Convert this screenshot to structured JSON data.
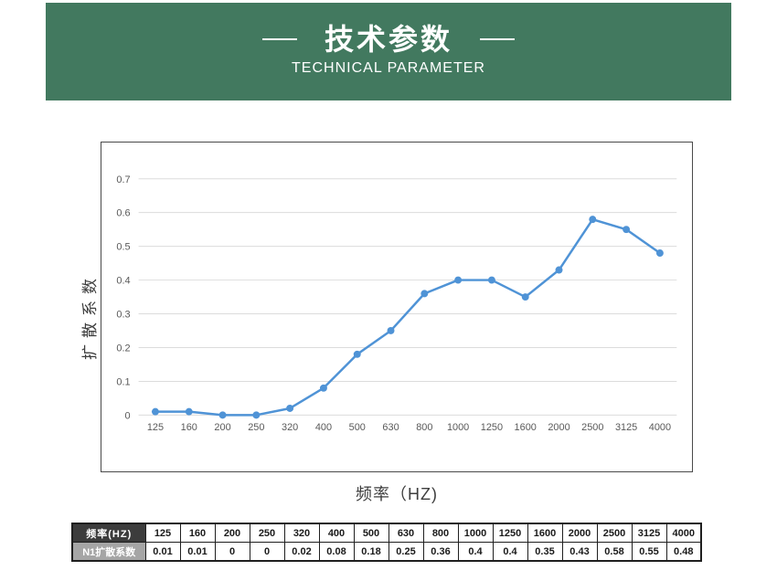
{
  "header": {
    "title": "技术参数",
    "subtitle": "TECHNICAL PARAMETER",
    "background_color": "#42795f"
  },
  "chart_data": {
    "type": "line",
    "title": "",
    "xlabel": "频率（HZ)",
    "ylabel": "扩散系数",
    "categories": [
      "125",
      "160",
      "200",
      "250",
      "320",
      "400",
      "500",
      "630",
      "800",
      "1000",
      "1250",
      "1600",
      "2000",
      "2500",
      "3125",
      "4000"
    ],
    "series": [
      {
        "name": "N1扩散系数",
        "values": [
          0.01,
          0.01,
          0,
          0,
          0.02,
          0.08,
          0.18,
          0.25,
          0.36,
          0.4,
          0.4,
          0.35,
          0.43,
          0.58,
          0.55,
          0.48
        ]
      }
    ],
    "y_ticks": [
      0,
      0.1,
      0.2,
      0.3,
      0.4,
      0.5,
      0.6,
      0.7
    ],
    "ylim": [
      0,
      0.7
    ],
    "grid": true,
    "legend_position": "none",
    "line_color": "#4f93d6",
    "gridline_color": "#dcdcdc",
    "marker": "circle"
  },
  "table": {
    "row1_header": "频率(HZ)",
    "row2_header": "N1扩散系数",
    "frequencies": [
      "125",
      "160",
      "200",
      "250",
      "320",
      "400",
      "500",
      "630",
      "800",
      "1000",
      "1250",
      "1600",
      "2000",
      "2500",
      "3125",
      "4000"
    ],
    "coefficients": [
      "0.01",
      "0.01",
      "0",
      "0",
      "0.02",
      "0.08",
      "0.18",
      "0.25",
      "0.36",
      "0.4",
      "0.4",
      "0.35",
      "0.43",
      "0.58",
      "0.55",
      "0.48"
    ],
    "header_bg_dark": "#3c3c3c",
    "header_bg_gray": "#a5a5a5"
  }
}
